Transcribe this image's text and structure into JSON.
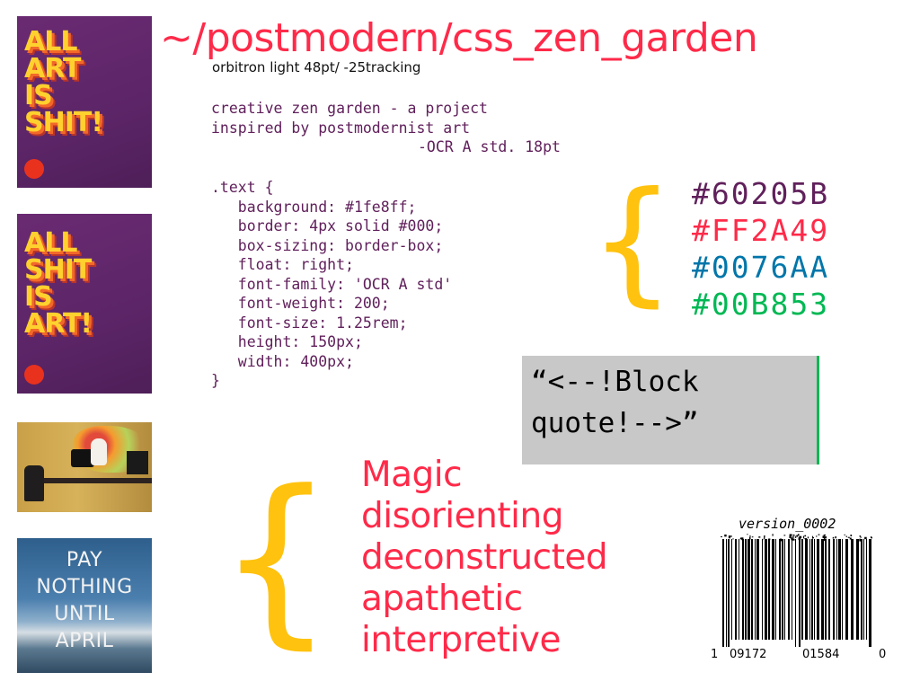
{
  "posters": [
    {
      "lines": [
        "ALL",
        "ART",
        "IS",
        "SHIT!"
      ]
    },
    {
      "lines": [
        "ALL",
        "SHIT",
        "IS",
        "ART!"
      ]
    }
  ],
  "pay_poster": {
    "lines": [
      "PAY",
      "NOTHING",
      "UNTIL",
      "APRIL"
    ]
  },
  "header": {
    "title": "~/postmodern/css_zen_garden",
    "subtitle": "orbitron light 48pt/ -25tracking"
  },
  "intro": {
    "text": "creative zen garden - a project\ninspired by postmodernist art",
    "credit": "-OCR A std. 18pt"
  },
  "code_sample": ".text {\n   background: #1fe8ff;\n   border: 4px solid #000;\n   box-sizing: border-box;\n   float: right;\n   font-family: 'OCR A std'\n   font-weight: 200;\n   font-size: 1.25rem;\n   height: 150px;\n   width: 400px;\n}",
  "braces": {
    "symbol": "{"
  },
  "palette": [
    {
      "hex": "#60205B"
    },
    {
      "hex": "#FF2A49"
    },
    {
      "hex": "#0076AA"
    },
    {
      "hex": "#00B853"
    }
  ],
  "blockquote": {
    "line1": "“<--!Block",
    "line2": "quote!-->”"
  },
  "adjectives": [
    "Magic",
    "disorienting",
    "deconstructed",
    "apathetic",
    "interpretive"
  ],
  "barcode": {
    "version": "version_0002",
    "digits": [
      "1",
      "09172",
      "01584",
      "0"
    ]
  },
  "colors": {
    "purple": "#60205b",
    "red": "#ff2a49",
    "blue": "#0076aa",
    "green": "#00b853",
    "yellow": "#ffc20e",
    "quote_bg": "#c8c8c8"
  }
}
